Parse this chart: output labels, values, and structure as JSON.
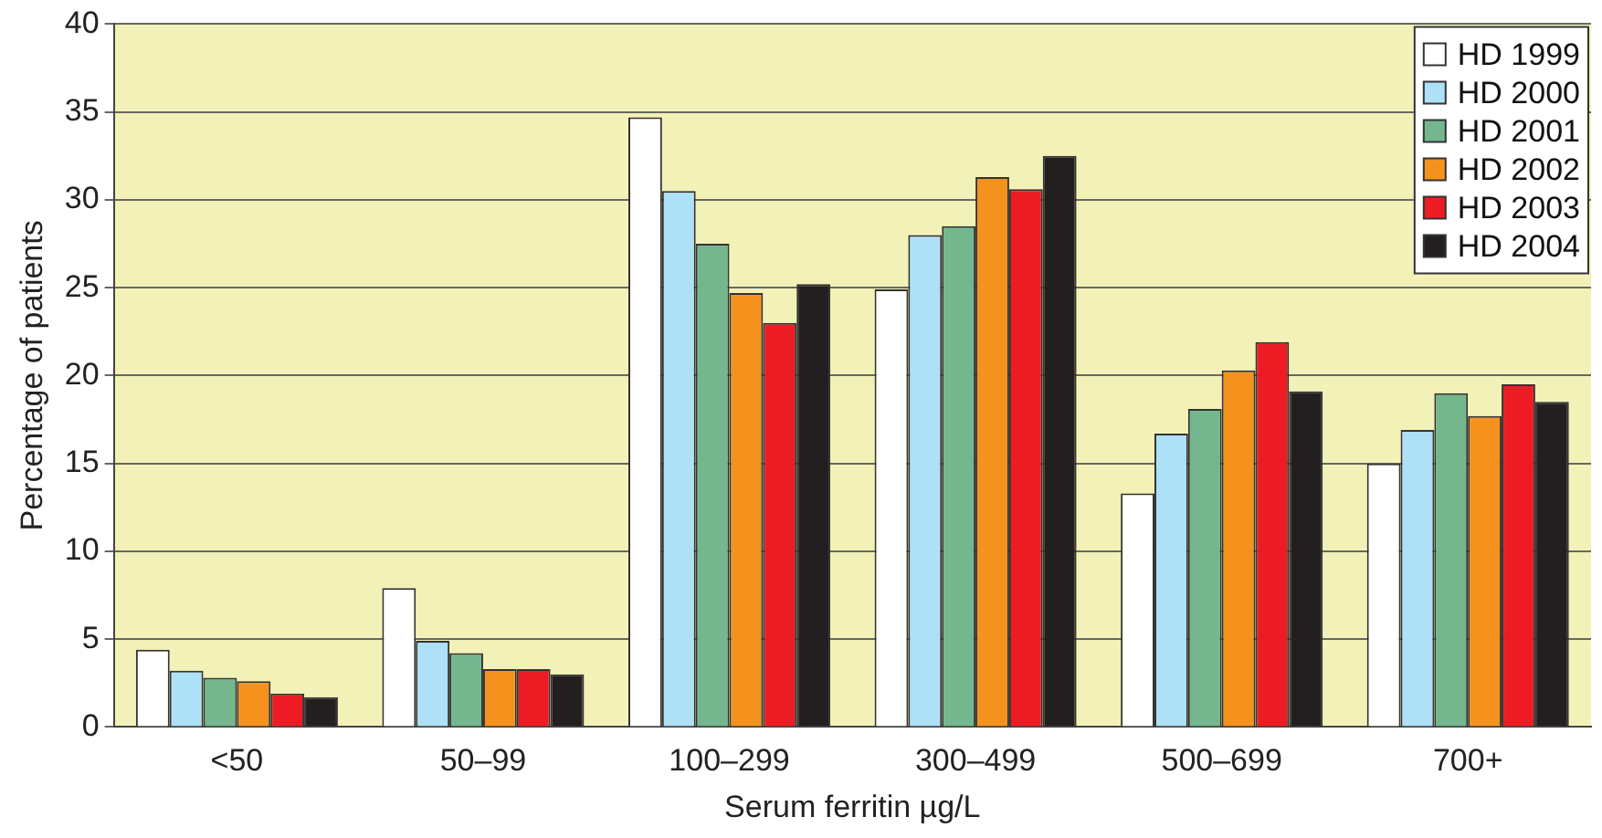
{
  "chart_data": {
    "type": "bar",
    "xlabel": "Serum ferritin µg/L",
    "ylabel": "Percentage of patients",
    "categories": [
      "<50",
      "50–99",
      "100–299",
      "300–499",
      "500–699",
      "700+"
    ],
    "series": [
      {
        "name": "HD 1999",
        "color": "#ffffff",
        "values": [
          4.4,
          7.9,
          34.7,
          24.9,
          13.3,
          15.0
        ]
      },
      {
        "name": "HD 2000",
        "color": "#aee0f8",
        "values": [
          3.2,
          4.9,
          30.5,
          28.0,
          16.7,
          16.9
        ]
      },
      {
        "name": "HD 2001",
        "color": "#74b78f",
        "values": [
          2.8,
          4.2,
          27.5,
          28.5,
          18.1,
          19.0
        ]
      },
      {
        "name": "HD 2002",
        "color": "#f5921e",
        "values": [
          2.6,
          3.3,
          24.7,
          31.3,
          20.3,
          17.7
        ]
      },
      {
        "name": "HD 2003",
        "color": "#ed1c24",
        "values": [
          1.9,
          3.3,
          23.0,
          30.6,
          21.9,
          19.5
        ]
      },
      {
        "name": "HD 2004",
        "color": "#231f20",
        "values": [
          1.7,
          3.0,
          25.2,
          32.5,
          19.1,
          18.5
        ]
      }
    ],
    "ylim": [
      0,
      40
    ],
    "yticks": [
      0,
      5,
      10,
      15,
      20,
      25,
      30,
      35,
      40
    ],
    "grid": "y",
    "legend": "top right"
  }
}
